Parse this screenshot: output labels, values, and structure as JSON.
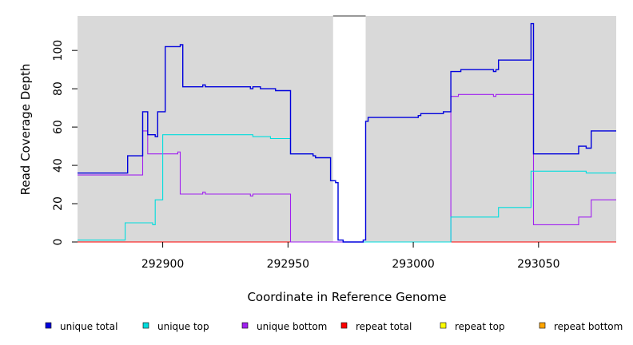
{
  "chart_data": {
    "type": "line",
    "title": "",
    "xlabel": "Coordinate in Reference Genome",
    "ylabel": "Read Coverage Depth",
    "xlim": [
      292866,
      293081
    ],
    "ylim": [
      0,
      118
    ],
    "xticks": [
      292900,
      292950,
      293000,
      293050
    ],
    "yticks": [
      0,
      20,
      40,
      60,
      80,
      100
    ],
    "grid": false,
    "background": "#d9d9d9",
    "gap_regions": [
      [
        292968,
        292981
      ]
    ],
    "legend_position": "bottom",
    "series": [
      {
        "name": "unique total",
        "color": "#0000dd",
        "steps": [
          [
            292866,
            36
          ],
          [
            292886,
            45
          ],
          [
            292892,
            68
          ],
          [
            292894,
            56
          ],
          [
            292897,
            55
          ],
          [
            292898,
            68
          ],
          [
            292901,
            102
          ],
          [
            292907,
            103
          ],
          [
            292908,
            81
          ],
          [
            292916,
            82
          ],
          [
            292917,
            81
          ],
          [
            292935,
            80
          ],
          [
            292936,
            81
          ],
          [
            292939,
            80
          ],
          [
            292945,
            79
          ],
          [
            292951,
            46
          ],
          [
            292960,
            45
          ],
          [
            292961,
            44
          ],
          [
            292967,
            32
          ],
          [
            292969,
            31
          ],
          [
            292970,
            1
          ],
          [
            292972,
            0
          ],
          [
            292980,
            1
          ],
          [
            292981,
            63
          ],
          [
            292982,
            65
          ],
          [
            293002,
            66
          ],
          [
            293003,
            67
          ],
          [
            293012,
            68
          ],
          [
            293015,
            89
          ],
          [
            293019,
            90
          ],
          [
            293032,
            89
          ],
          [
            293033,
            90
          ],
          [
            293034,
            95
          ],
          [
            293047,
            114
          ],
          [
            293048,
            46
          ],
          [
            293066,
            50
          ],
          [
            293069,
            49
          ],
          [
            293071,
            58
          ],
          [
            293081,
            58
          ]
        ]
      },
      {
        "name": "unique top",
        "color": "#00dddd",
        "steps": [
          [
            292866,
            1
          ],
          [
            292885,
            10
          ],
          [
            292896,
            9
          ],
          [
            292897,
            22
          ],
          [
            292900,
            56
          ],
          [
            292936,
            55
          ],
          [
            292943,
            54
          ],
          [
            292951,
            46
          ],
          [
            292960,
            45
          ],
          [
            292961,
            44
          ],
          [
            292967,
            32
          ],
          [
            292969,
            31
          ],
          [
            292970,
            1
          ],
          [
            292972,
            0
          ],
          [
            292981,
            0
          ],
          [
            293015,
            13
          ],
          [
            293034,
            18
          ],
          [
            293047,
            37
          ],
          [
            293069,
            36
          ],
          [
            293081,
            36
          ]
        ]
      },
      {
        "name": "unique bottom",
        "color": "#a020f0",
        "steps": [
          [
            292866,
            35
          ],
          [
            292889,
            35
          ],
          [
            292892,
            58
          ],
          [
            292894,
            46
          ],
          [
            292906,
            47
          ],
          [
            292907,
            25
          ],
          [
            292916,
            26
          ],
          [
            292917,
            25
          ],
          [
            292935,
            24
          ],
          [
            292936,
            25
          ],
          [
            292951,
            0
          ],
          [
            293014,
            0
          ],
          [
            293015,
            76
          ],
          [
            293018,
            77
          ],
          [
            293032,
            76
          ],
          [
            293033,
            77
          ],
          [
            293048,
            9
          ],
          [
            293066,
            13
          ],
          [
            293071,
            22
          ],
          [
            293081,
            22
          ]
        ]
      },
      {
        "name": "repeat total",
        "color": "#ff0000",
        "steps": [
          [
            292866,
            0
          ],
          [
            293081,
            0
          ]
        ]
      },
      {
        "name": "repeat top",
        "color": "#ffff00",
        "steps": [
          [
            292866,
            0
          ],
          [
            293081,
            0
          ]
        ]
      },
      {
        "name": "repeat bottom",
        "color": "#ffa500",
        "steps": [
          [
            292866,
            0
          ],
          [
            293081,
            0
          ]
        ]
      }
    ]
  }
}
